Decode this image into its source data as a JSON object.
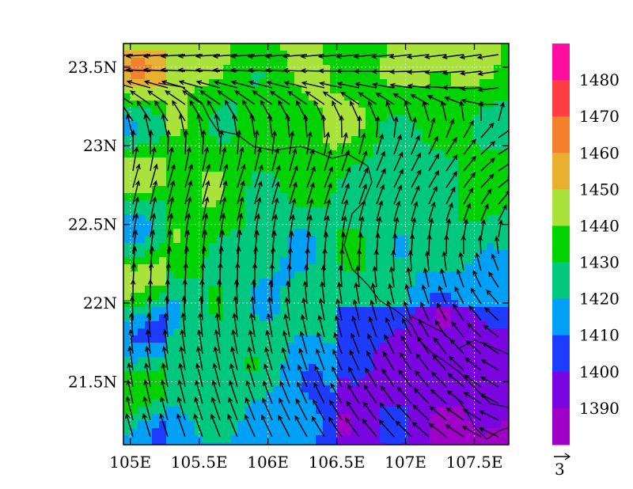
{
  "map": {
    "lon_ticks": [
      "105E",
      "105.5E",
      "106E",
      "106.5E",
      "107E",
      "107.5E"
    ],
    "lat_ticks": [
      "23.5N",
      "23N",
      "22.5N",
      "22N",
      "21.5N"
    ],
    "lon_values": [
      105,
      105.5,
      106,
      106.5,
      107,
      107.5
    ],
    "lat_values": [
      23.5,
      23,
      22.5,
      22,
      21.5
    ],
    "lon_range": [
      104.95,
      107.75
    ],
    "lat_range": [
      21.1,
      23.65
    ],
    "grid": "dotted"
  },
  "colorbar": {
    "labels": [
      "1480",
      "1470",
      "1460",
      "1450",
      "1440",
      "1430",
      "1420",
      "1410",
      "1400",
      "1390"
    ],
    "colors": [
      "#ff0ca0",
      "#ff3d42",
      "#f5802c",
      "#e8b02e",
      "#a8e23a",
      "#00d300",
      "#00c87f",
      "#00a0f6",
      "#1e3cff",
      "#7a05e0",
      "#a000c8"
    ]
  },
  "reference_vector": {
    "label": "3"
  }
}
